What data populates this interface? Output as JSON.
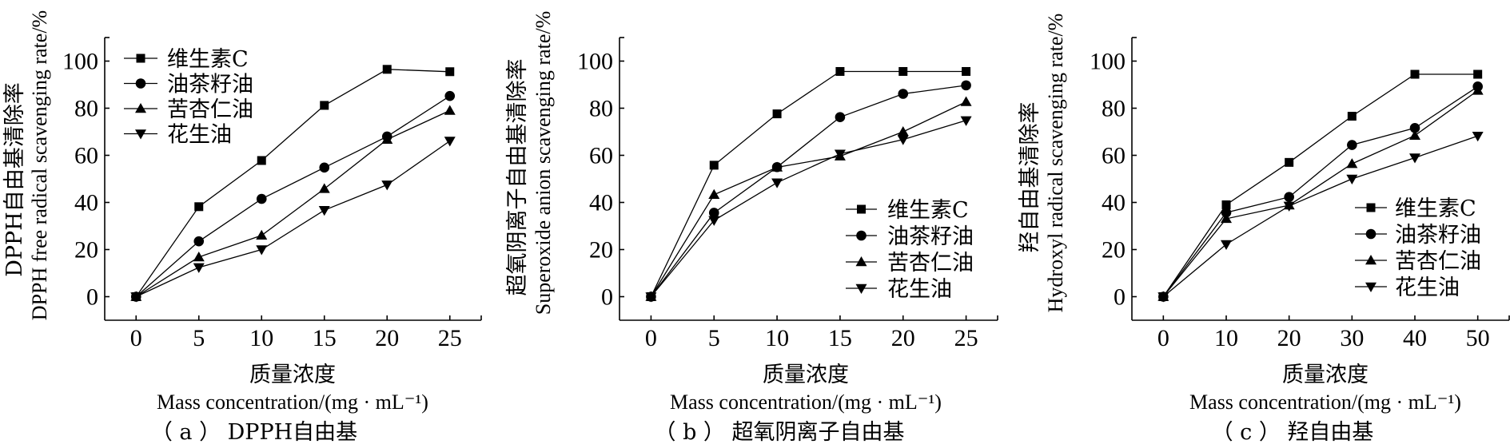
{
  "figure": {
    "legend_labels": [
      "维生素C",
      "油茶籽油",
      "苦杏仁油",
      "花生油"
    ],
    "marker_types": [
      "square",
      "circle",
      "triangle-up",
      "triangle-down"
    ],
    "line_color": "#000000"
  },
  "chart_data": [
    {
      "type": "line",
      "panel": "a",
      "caption": "（ a ） DPPH自由基",
      "title": "",
      "xlabel_cn": "质量浓度",
      "xlabel_en": "Mass concentration/(mg · mL⁻¹)",
      "ylabel_cn": "DPPH自由基清除率",
      "ylabel_en": "DPPH free radical scavenging rate/%",
      "x": [
        0,
        5,
        10,
        15,
        20,
        25
      ],
      "xticks": [
        0,
        5,
        10,
        15,
        20,
        25
      ],
      "yticks": [
        0,
        20,
        40,
        60,
        80,
        100
      ],
      "xlim": [
        -2.5,
        27.5
      ],
      "ylim": [
        -10,
        110
      ],
      "legend_position": "top-left",
      "grid": false,
      "series": [
        {
          "name": "维生素C",
          "marker": "square",
          "values": [
            0,
            38.2,
            57.8,
            81.2,
            96.5,
            95.5
          ]
        },
        {
          "name": "油茶籽油",
          "marker": "circle",
          "values": [
            0,
            23.5,
            41.5,
            54.8,
            68.0,
            85.2
          ]
        },
        {
          "name": "苦杏仁油",
          "marker": "triangle-up",
          "values": [
            0,
            16.8,
            26.0,
            45.8,
            66.7,
            79.0
          ]
        },
        {
          "name": "花生油",
          "marker": "triangle-down",
          "values": [
            0,
            12.4,
            20.0,
            36.7,
            47.5,
            66.1
          ]
        }
      ]
    },
    {
      "type": "line",
      "panel": "b",
      "caption": "（ b ） 超氧阴离子自由基",
      "title": "",
      "xlabel_cn": "质量浓度",
      "xlabel_en": "Mass concentration/(mg · mL⁻¹)",
      "ylabel_cn": "超氧阴离子自由基清除率",
      "ylabel_en": "Superoxide anion scavenging rate/%",
      "x": [
        0,
        5,
        10,
        15,
        20,
        25
      ],
      "xticks": [
        0,
        5,
        10,
        15,
        20,
        25
      ],
      "yticks": [
        0,
        20,
        40,
        60,
        80,
        100
      ],
      "xlim": [
        -2.5,
        27.5
      ],
      "ylim": [
        -10,
        110
      ],
      "legend_position": "bottom-right",
      "grid": false,
      "series": [
        {
          "name": "维生素C",
          "marker": "square",
          "values": [
            0,
            55.8,
            77.6,
            95.6,
            95.6,
            95.6
          ]
        },
        {
          "name": "油茶籽油",
          "marker": "circle",
          "values": [
            0,
            35.6,
            55.0,
            76.2,
            86.1,
            89.7
          ]
        },
        {
          "name": "苦杏仁油",
          "marker": "triangle-up",
          "values": [
            0,
            43.3,
            54.9,
            59.6,
            70.0,
            82.7
          ]
        },
        {
          "name": "花生油",
          "marker": "triangle-down",
          "values": [
            0,
            32.4,
            48.4,
            60.6,
            66.7,
            74.8
          ]
        }
      ]
    },
    {
      "type": "line",
      "panel": "c",
      "caption": "（ c ） 羟自由基",
      "title": "",
      "xlabel_cn": "质量浓度",
      "xlabel_en": "Mass concentration/(mg · mL⁻¹)",
      "ylabel_cn": "羟自由基清除率",
      "ylabel_en": "Hydroxyl radical scavenging rate/%",
      "x": [
        0,
        10,
        20,
        30,
        40,
        50
      ],
      "xticks": [
        0,
        10,
        20,
        30,
        40,
        50
      ],
      "yticks": [
        0,
        20,
        40,
        60,
        80,
        100
      ],
      "xlim": [
        -5,
        55
      ],
      "ylim": [
        -10,
        110
      ],
      "legend_position": "bottom-right",
      "grid": false,
      "series": [
        {
          "name": "维生素C",
          "marker": "square",
          "values": [
            0,
            39.0,
            57.0,
            76.6,
            94.4,
            94.4
          ]
        },
        {
          "name": "油茶籽油",
          "marker": "circle",
          "values": [
            0,
            35.7,
            42.3,
            64.4,
            71.6,
            89.2
          ]
        },
        {
          "name": "苦杏仁油",
          "marker": "triangle-up",
          "values": [
            0,
            33.1,
            38.8,
            56.4,
            68.4,
            87.5
          ]
        },
        {
          "name": "花生油",
          "marker": "triangle-down",
          "values": [
            0,
            22.2,
            38.5,
            50.0,
            59.0,
            68.2
          ]
        }
      ]
    }
  ]
}
